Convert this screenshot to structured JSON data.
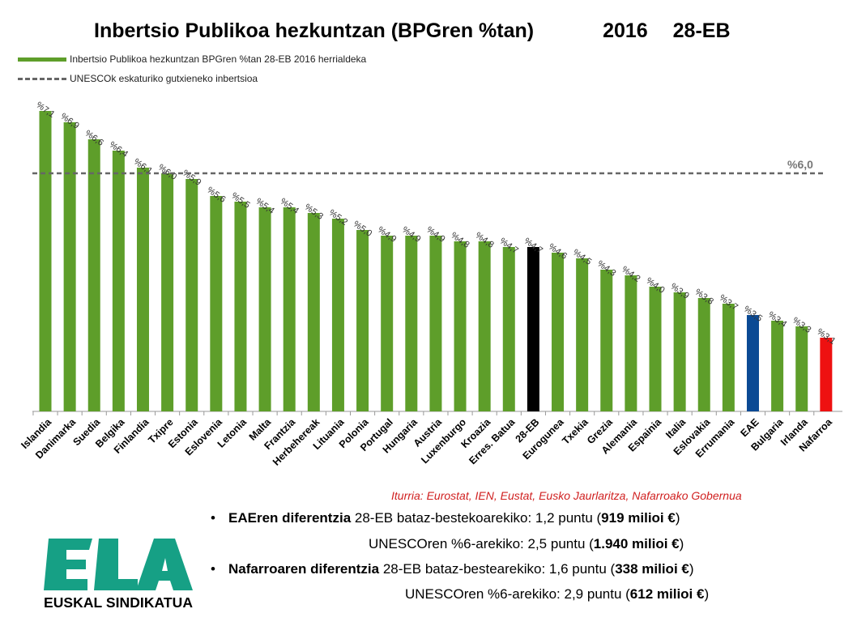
{
  "title": {
    "main": "Inbertsio Publikoa hezkuntzan (BPGren %tan)",
    "year": "2016",
    "region": "28-EB"
  },
  "legend": {
    "bars": "Inbertsio Publikoa hezkuntzan BPGren %tan 28-EB 2016 herrialdeka",
    "line": "UNESCOk eskaturiko gutxieneko inbertsioa"
  },
  "colors": {
    "default": "#5e9e2a",
    "eu28": "#000000",
    "eae": "#0b4a94",
    "nafarroa": "#ee1111",
    "threshold": "#666666"
  },
  "chart_data": {
    "type": "bar",
    "title": "Inbertsio Publikoa hezkuntzan (BPGren %tan)",
    "categories": [
      "Islandia",
      "Danimarka",
      "Suedia",
      "Belgika",
      "Finlandia",
      "Txipre",
      "Estonia",
      "Eslovenia",
      "Letonia",
      "Malta",
      "Frantzia",
      "Herbehereak",
      "Lituania",
      "Polonia",
      "Portugal",
      "Hungaria",
      "Austria",
      "Luxenburgo",
      "Kroazia",
      "Erres. Batua",
      "28-EB",
      "Eurogunea",
      "Txekia",
      "Grezia",
      "Alemania",
      "Espainia",
      "Italia",
      "Eslovakia",
      "Errumania",
      "EAE",
      "Bulgaria",
      "Irlanda",
      "Nafarroa"
    ],
    "values": [
      7.1,
      6.9,
      6.6,
      6.4,
      6.1,
      6.0,
      5.9,
      5.6,
      5.5,
      5.4,
      5.4,
      5.3,
      5.2,
      5.0,
      4.9,
      4.9,
      4.9,
      4.8,
      4.8,
      4.7,
      4.7,
      4.6,
      4.5,
      4.3,
      4.2,
      4.0,
      3.9,
      3.8,
      3.7,
      3.5,
      3.4,
      3.3,
      3.1
    ],
    "data_labels": [
      "%7,1",
      "%6,9",
      "%6,6",
      "%6,4",
      "%6,1",
      "%6,0",
      "%5,9",
      "%5,6",
      "%5,5",
      "%5,4",
      "%5,4",
      "%5,3",
      "%5,2",
      "%5,0",
      "%4,9",
      "%4,9",
      "%4,9",
      "%4,8",
      "%4,8",
      "%4,7",
      "%4,7",
      "%4,6",
      "%4,5",
      "%4,3",
      "%4,2",
      "%4,0",
      "%3,9",
      "%3,8",
      "%3,7",
      "%3,5",
      "%3,4",
      "%3,3",
      "%3,1"
    ],
    "highlight": {
      "28-EB": "eu28",
      "EAE": "eae",
      "Nafarroa": "nafarroa"
    },
    "threshold": {
      "value": 6.0,
      "label": "%6,0"
    },
    "ylim": [
      1.8,
      7.5
    ],
    "grid": false,
    "legend_position": "top-left",
    "xlabel": "",
    "ylabel": ""
  },
  "source": "Iturria: Eurostat, IEN, Eustat, Eusko Jaurlaritza, Nafarroako Gobernua",
  "notes": {
    "eae": {
      "bold": "EAEren diferentzia",
      "text": " 28-EB bataz-bestekoarekiko: 1,2 puntu (",
      "amount": "919 milioi €",
      "close": ")"
    },
    "eae_unesco": {
      "text": "UNESCOren %6-arekiko: 2,5 puntu (",
      "amount": "1.940 milioi €",
      "close": ")"
    },
    "naf": {
      "bold": "Nafarroaren diferentzia",
      "text": " 28-EB bataz-bestearekiko: 1,6 puntu (",
      "amount": "338 milioi €",
      "close": ")"
    },
    "naf_unesco": {
      "text": "UNESCOren %6-arekiko: 2,9 puntu (",
      "amount": "612 milioi €",
      "close": ")"
    },
    "bullet": "•"
  },
  "logo": {
    "letters": "ELA",
    "subtitle": "EUSKAL SINDIKATUA",
    "color": "#16a085"
  }
}
